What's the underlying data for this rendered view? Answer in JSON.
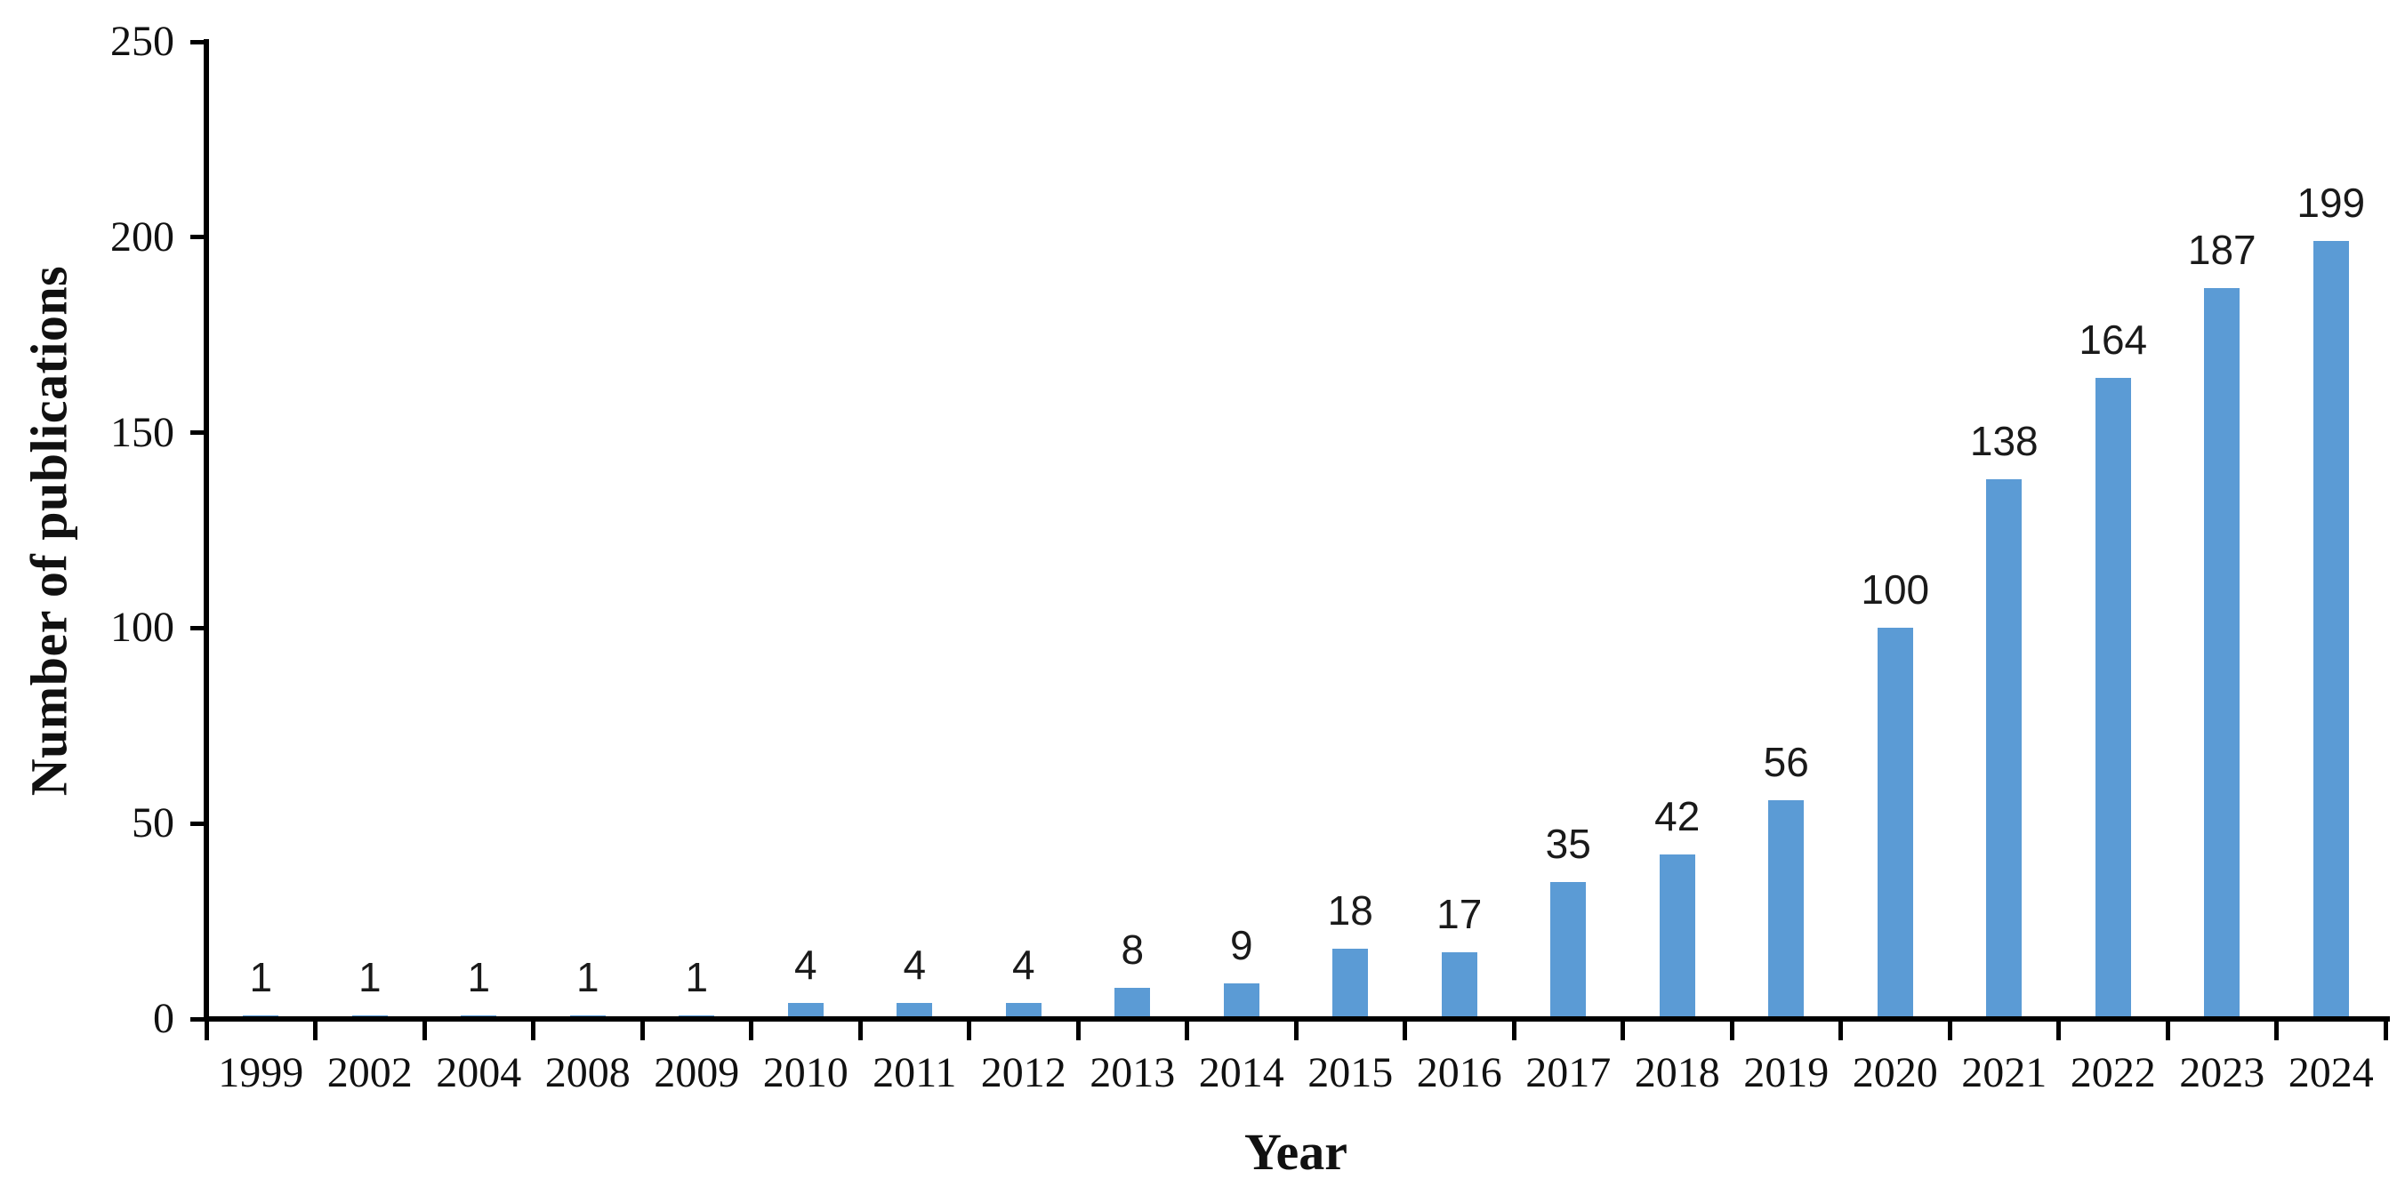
{
  "chart_data": {
    "type": "bar",
    "categories": [
      "1999",
      "2002",
      "2004",
      "2008",
      "2009",
      "2010",
      "2011",
      "2012",
      "2013",
      "2014",
      "2015",
      "2016",
      "2017",
      "2018",
      "2019",
      "2020",
      "2021",
      "2022",
      "2023",
      "2024"
    ],
    "values": [
      1,
      1,
      1,
      1,
      1,
      4,
      4,
      4,
      8,
      9,
      18,
      17,
      35,
      42,
      56,
      100,
      138,
      164,
      187,
      199
    ],
    "title": "",
    "xlabel": "Year",
    "ylabel": "Number of publications",
    "ylim": [
      0,
      250
    ],
    "yticks": [
      0,
      50,
      100,
      150,
      200,
      250
    ],
    "bar_color": "#5B9BD5",
    "axis_color": "#000000",
    "text_color": "#111111",
    "grid": false,
    "legend_position": "none",
    "data_labels": "outside-end"
  }
}
